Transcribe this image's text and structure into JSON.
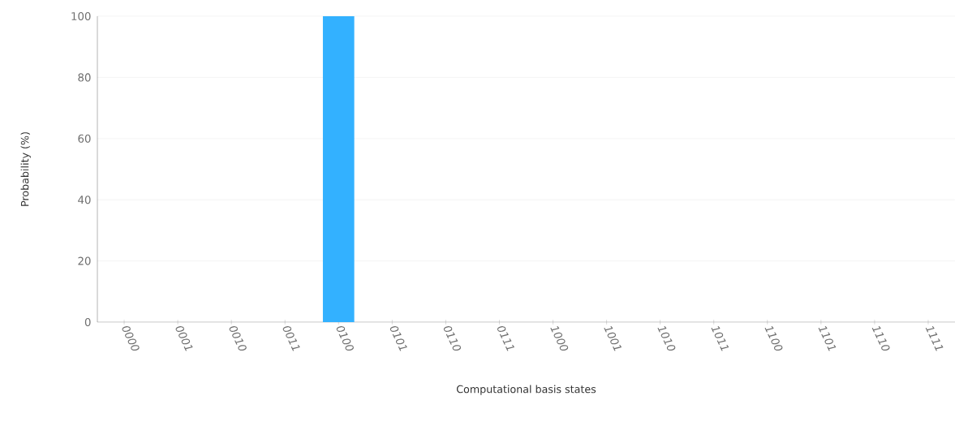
{
  "chart_data": {
    "type": "bar",
    "xlabel": "Computational basis states",
    "ylabel": "Probability (%)",
    "categories": [
      "0000",
      "0001",
      "0010",
      "0011",
      "0100",
      "0101",
      "0110",
      "0111",
      "1000",
      "1001",
      "1010",
      "1011",
      "1100",
      "1101",
      "1110",
      "1111"
    ],
    "values": [
      0,
      0,
      0,
      0,
      100,
      0,
      0,
      0,
      0,
      0,
      0,
      0,
      0,
      0,
      0,
      0
    ],
    "color": "#33b1ff",
    "ylim": [
      0,
      100
    ],
    "yticks": [
      0,
      20,
      40,
      60,
      80,
      100
    ],
    "grid": "y"
  }
}
